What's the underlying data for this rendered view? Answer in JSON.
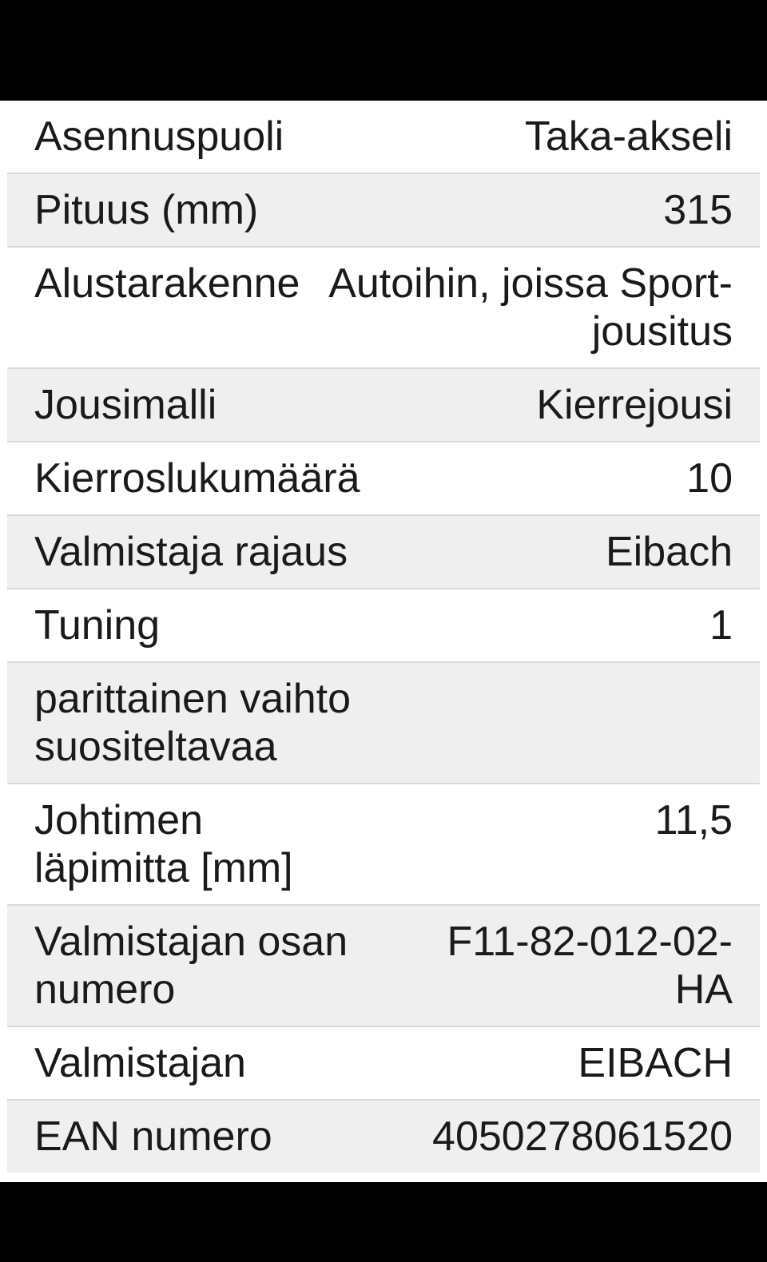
{
  "colors": {
    "top_bar": "#000000",
    "bottom_bar": "#000000",
    "row_bg": "#ffffff",
    "row_alt_bg": "#efefef",
    "separator": "#d9d9d9",
    "text": "#1a1a1a"
  },
  "spec_table": {
    "rows": [
      {
        "label": "Asennuspuoli",
        "value": "Taka-akseli"
      },
      {
        "label": "Pituus (mm)",
        "value": "315"
      },
      {
        "label": "Alustarakenne",
        "value": "Autoihin, joissa Sport-jousitus"
      },
      {
        "label": "Jousimalli",
        "value": "Kierrejousi"
      },
      {
        "label": "Kierroslukumäärä",
        "value": "10"
      },
      {
        "label": "Valmistaja rajaus",
        "value": "Eibach"
      },
      {
        "label": "Tuning",
        "value": "1"
      },
      {
        "label": "parittainen vaihto suositeltavaa",
        "value": ""
      },
      {
        "label": "Johtimen läpimitta [mm]",
        "value": "11,5"
      },
      {
        "label": "Valmistajan osan numero",
        "value": "F11-82-012-02-HA"
      },
      {
        "label": "Valmistajan",
        "value": "EIBACH"
      },
      {
        "label": "EAN numero",
        "value": "4050278061520"
      }
    ]
  }
}
